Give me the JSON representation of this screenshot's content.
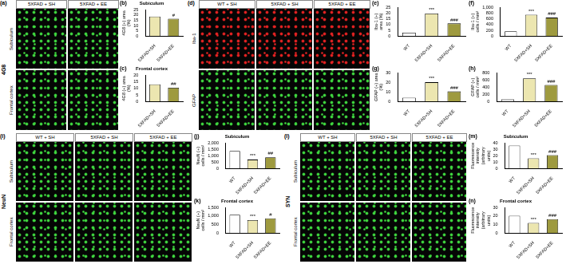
{
  "image_panels": [
    {
      "letter": "(a)",
      "label": "4G8",
      "columns": [
        "5XFAD + SH",
        "5XFAD + EE"
      ],
      "rows": [
        "Subiculum",
        "Frontal cortex"
      ],
      "row_colors": [
        "#3fd83f",
        "#3fd83f"
      ]
    },
    {
      "letter": "(d)",
      "columns": [
        "WT + SH",
        "5XFAD + SH",
        "5XFAD + EE"
      ],
      "rows": [
        "Iba-1",
        "GFAP"
      ],
      "row_colors": [
        "#e52222",
        "#3fd83f"
      ]
    },
    {
      "letter": "(i)",
      "label": "NeuN",
      "columns": [
        "WT + SH",
        "5XFAD + SH",
        "5XFAD + EE"
      ],
      "rows": [
        "Subiculum",
        "Frontal cortex"
      ],
      "row_colors": [
        "#3fd83f",
        "#3fd83f"
      ]
    },
    {
      "letter": "(l)",
      "label": "SYN",
      "columns": [
        "WT + SH",
        "5XFAD + SH",
        "5XFAD + EE"
      ],
      "rows": [
        "Subiculum",
        "Frontal cortex"
      ],
      "row_colors": [
        "#3fd83f",
        "#3fd83f"
      ]
    }
  ],
  "chart_data": [
    {
      "letter": "(b)",
      "type": "bar",
      "title": "Subiculum",
      "y_label": "4G8 (+) area (%)",
      "categories": [
        "5XFAD+SH",
        "5XFAD+EE"
      ],
      "values": [
        18.5,
        16.5
      ],
      "colors": [
        "#ece6b0",
        "#9e9a3f"
      ],
      "significance": [
        null,
        "#"
      ],
      "ylim": [
        0,
        25
      ],
      "yticks": [
        0,
        5,
        10,
        15,
        20,
        25
      ]
    },
    {
      "letter": "(c)",
      "type": "bar",
      "title": "Frontal cortex",
      "y_label": "4G8 (+) area (%)",
      "categories": [
        "5XFAD+SH",
        "5XFAD+EE"
      ],
      "values": [
        13,
        10.5
      ],
      "colors": [
        "#ece6b0",
        "#9e9a3f"
      ],
      "significance": [
        null,
        "##"
      ],
      "ylim": [
        0,
        20
      ],
      "yticks": [
        0,
        5,
        10,
        15,
        20
      ]
    },
    {
      "letter": "(e)",
      "type": "bar",
      "y_label": "Iba-1 (+) area (%)",
      "categories": [
        "WT",
        "5XFAD+SH",
        "5XFAD+EE"
      ],
      "values": [
        3,
        19.5,
        11
      ],
      "colors": [
        "#ffffff",
        "#ece6b0",
        "#9e9a3f"
      ],
      "significance": [
        null,
        "***",
        "###"
      ],
      "ylim": [
        0,
        25
      ],
      "yticks": [
        0,
        5,
        10,
        15,
        20,
        25
      ]
    },
    {
      "letter": "(f)",
      "type": "bar",
      "y_label": "Iba-1 (+) cells / mm²",
      "categories": [
        "WT",
        "5XFAD+SH",
        "5XFAD+EE"
      ],
      "values": [
        170,
        740,
        640
      ],
      "colors": [
        "#ffffff",
        "#ece6b0",
        "#9e9a3f"
      ],
      "significance": [
        null,
        "***",
        "###"
      ],
      "ylim": [
        0,
        1000
      ],
      "yticks": [
        0,
        200,
        400,
        600,
        800,
        1000
      ]
    },
    {
      "letter": "(g)",
      "type": "bar",
      "y_label": "GFAP (+) area (%)",
      "categories": [
        "WT",
        "5XFAD+SH",
        "5XFAD+EE"
      ],
      "values": [
        4,
        20,
        10.5
      ],
      "colors": [
        "#ffffff",
        "#ece6b0",
        "#9e9a3f"
      ],
      "significance": [
        null,
        "***",
        "###"
      ],
      "ylim": [
        0,
        30
      ],
      "yticks": [
        0,
        10,
        20,
        30
      ]
    },
    {
      "letter": "(h)",
      "type": "bar",
      "y_label": "GFAP (+) cells / mm²",
      "categories": [
        "WT",
        "5XFAD+SH",
        "5XFAD+EE"
      ],
      "values": [
        60,
        640,
        460
      ],
      "colors": [
        "#ffffff",
        "#ece6b0",
        "#9e9a3f"
      ],
      "significance": [
        null,
        "***",
        "###"
      ],
      "ylim": [
        0,
        800
      ],
      "yticks": [
        0,
        200,
        400,
        600,
        800
      ]
    },
    {
      "letter": "(j)",
      "type": "bar",
      "title": "Subiculum",
      "y_label": "NeuN (+) cells / mm²",
      "categories": [
        "WT",
        "5XFAD+SH",
        "5XFAD+EE"
      ],
      "values": [
        1380,
        700,
        880
      ],
      "colors": [
        "#ffffff",
        "#ece6b0",
        "#9e9a3f"
      ],
      "significance": [
        null,
        "***",
        "##"
      ],
      "ylim": [
        0,
        2000
      ],
      "yticks": [
        0,
        500,
        1000,
        1500,
        2000
      ]
    },
    {
      "letter": "(k)",
      "type": "bar",
      "title": "Frontal cortex",
      "y_label": "NeuN (+) cells / mm²",
      "categories": [
        "WT",
        "5XFAD+SH",
        "5XFAD+EE"
      ],
      "values": [
        1080,
        760,
        870
      ],
      "colors": [
        "#ffffff",
        "#ece6b0",
        "#9e9a3f"
      ],
      "significance": [
        null,
        "***",
        "#"
      ],
      "ylim": [
        0,
        1500
      ],
      "yticks": [
        0,
        500,
        1000,
        1500
      ]
    },
    {
      "letter": "(m)",
      "type": "bar",
      "title": "Subiculum",
      "y_label": "Fluorescence intensity (arbitrary units)",
      "categories": [
        "WT",
        "5XFAD+SH",
        "5XFAD+EE"
      ],
      "values": [
        36,
        16,
        21
      ],
      "colors": [
        "#ffffff",
        "#ece6b0",
        "#9e9a3f"
      ],
      "significance": [
        null,
        "***",
        "###"
      ],
      "ylim": [
        0,
        40
      ],
      "yticks": [
        0,
        10,
        20,
        30,
        40
      ]
    },
    {
      "letter": "(n)",
      "type": "bar",
      "title": "Frontal cortex",
      "y_label": "Fluorescence intensity (arbitrary units)",
      "categories": [
        "WT",
        "5XFAD+SH",
        "5XFAD+EE"
      ],
      "values": [
        20.5,
        12,
        16.5
      ],
      "colors": [
        "#ffffff",
        "#ece6b0",
        "#9e9a3f"
      ],
      "significance": [
        null,
        "***",
        "###"
      ],
      "ylim": [
        0,
        30
      ],
      "yticks": [
        0,
        10,
        20,
        30
      ]
    }
  ]
}
